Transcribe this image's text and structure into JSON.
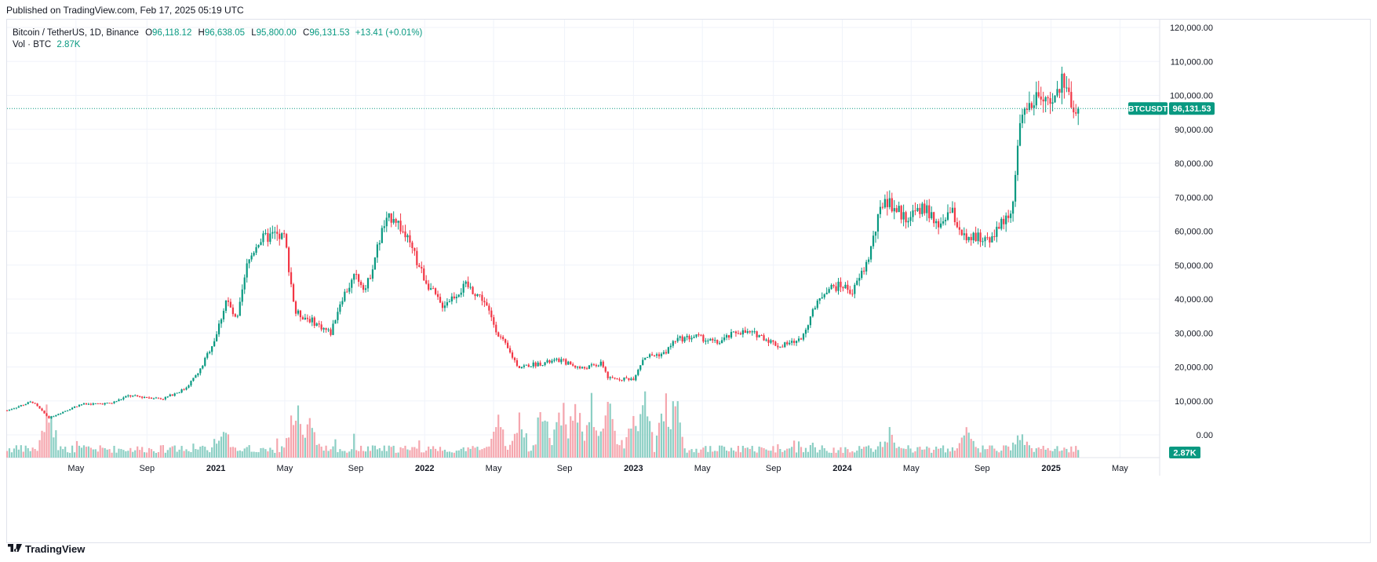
{
  "header": {
    "published": "Published on TradingView.com, Feb 17, 2025 05:19 UTC"
  },
  "legend": {
    "symbol": "Bitcoin / TetherUS, 1D, Binance",
    "open_label": "O",
    "open": "96,118.12",
    "high_label": "H",
    "high": "96,638.05",
    "low_label": "L",
    "low": "95,800.00",
    "close_label": "C",
    "close": "96,131.53",
    "change": "+13.41 (+0.01%)",
    "vol_label": "Vol · BTC",
    "vol_value": "2.87K"
  },
  "footer": {
    "brand": "TradingView",
    "logo_icon": "tradingview-logo-icon"
  },
  "colors": {
    "up": "#089981",
    "down": "#f23645",
    "up_vol": "#8ccfc4",
    "down_vol": "#f5a6ae",
    "grid": "#f0f3fa",
    "text": "#131722"
  },
  "chart_data": {
    "type": "candlestick",
    "title": "Bitcoin / TetherUS, 1D, Binance",
    "symbol_tag": "BTCUSDT",
    "last_price": 96131.53,
    "last_price_label": "96,131.53",
    "volume_label": "2.87K",
    "y_ticks": [
      {
        "v": 120000,
        "label": "120,000.00"
      },
      {
        "v": 110000,
        "label": "110,000.00"
      },
      {
        "v": 100000,
        "label": "100,000.00"
      },
      {
        "v": 90000,
        "label": "90,000.00"
      },
      {
        "v": 80000,
        "label": "80,000.00"
      },
      {
        "v": 70000,
        "label": "70,000.00"
      },
      {
        "v": 60000,
        "label": "60,000.00"
      },
      {
        "v": 50000,
        "label": "50,000.00"
      },
      {
        "v": 40000,
        "label": "40,000.00"
      },
      {
        "v": 30000,
        "label": "30,000.00"
      },
      {
        "v": 20000,
        "label": "20,000.00"
      },
      {
        "v": 10000,
        "label": "10,000.00"
      },
      {
        "v": 0,
        "label": "0.00"
      }
    ],
    "ylim": [
      0,
      120000
    ],
    "x_range": [
      2020.0,
      2025.52
    ],
    "x_ticks": [
      {
        "t": 2020.33,
        "label": "May",
        "bold": false
      },
      {
        "t": 2020.67,
        "label": "Sep",
        "bold": false
      },
      {
        "t": 2021.0,
        "label": "2021",
        "bold": true
      },
      {
        "t": 2021.33,
        "label": "May",
        "bold": false
      },
      {
        "t": 2021.67,
        "label": "Sep",
        "bold": false
      },
      {
        "t": 2022.0,
        "label": "2022",
        "bold": true
      },
      {
        "t": 2022.33,
        "label": "May",
        "bold": false
      },
      {
        "t": 2022.67,
        "label": "Sep",
        "bold": false
      },
      {
        "t": 2023.0,
        "label": "2023",
        "bold": true
      },
      {
        "t": 2023.33,
        "label": "May",
        "bold": false
      },
      {
        "t": 2023.67,
        "label": "Sep",
        "bold": false
      },
      {
        "t": 2024.0,
        "label": "2024",
        "bold": true
      },
      {
        "t": 2024.33,
        "label": "May",
        "bold": false
      },
      {
        "t": 2024.67,
        "label": "Sep",
        "bold": false
      },
      {
        "t": 2025.0,
        "label": "2025",
        "bold": true
      },
      {
        "t": 2025.33,
        "label": "May",
        "bold": false
      }
    ],
    "price_path": [
      [
        2020.0,
        7200
      ],
      [
        2020.12,
        9800
      ],
      [
        2020.2,
        5000
      ],
      [
        2020.35,
        9000
      ],
      [
        2020.5,
        9300
      ],
      [
        2020.58,
        11500
      ],
      [
        2020.75,
        10700
      ],
      [
        2020.85,
        13500
      ],
      [
        2020.92,
        18500
      ],
      [
        2021.0,
        29000
      ],
      [
        2021.05,
        40000
      ],
      [
        2021.1,
        33000
      ],
      [
        2021.15,
        50000
      ],
      [
        2021.2,
        57000
      ],
      [
        2021.28,
        59000
      ],
      [
        2021.33,
        58000
      ],
      [
        2021.38,
        36000
      ],
      [
        2021.45,
        34000
      ],
      [
        2021.55,
        30000
      ],
      [
        2021.6,
        40000
      ],
      [
        2021.67,
        47000
      ],
      [
        2021.72,
        43000
      ],
      [
        2021.8,
        61000
      ],
      [
        2021.85,
        65000
      ],
      [
        2021.92,
        57000
      ],
      [
        2022.0,
        46000
      ],
      [
        2022.08,
        38000
      ],
      [
        2022.2,
        44000
      ],
      [
        2022.28,
        40000
      ],
      [
        2022.35,
        30000
      ],
      [
        2022.45,
        20000
      ],
      [
        2022.55,
        21000
      ],
      [
        2022.65,
        22000
      ],
      [
        2022.75,
        19500
      ],
      [
        2022.85,
        21000
      ],
      [
        2022.88,
        16500
      ],
      [
        2023.0,
        16600
      ],
      [
        2023.05,
        23000
      ],
      [
        2023.15,
        24000
      ],
      [
        2023.2,
        28000
      ],
      [
        2023.3,
        29000
      ],
      [
        2023.4,
        27000
      ],
      [
        2023.5,
        30500
      ],
      [
        2023.6,
        29500
      ],
      [
        2023.7,
        26000
      ],
      [
        2023.8,
        28000
      ],
      [
        2023.85,
        35000
      ],
      [
        2023.92,
        43000
      ],
      [
        2024.0,
        44000
      ],
      [
        2024.05,
        42000
      ],
      [
        2024.12,
        51000
      ],
      [
        2024.2,
        70000
      ],
      [
        2024.3,
        64000
      ],
      [
        2024.4,
        67000
      ],
      [
        2024.45,
        61000
      ],
      [
        2024.52,
        66000
      ],
      [
        2024.6,
        56000
      ],
      [
        2024.62,
        58000
      ],
      [
        2024.7,
        58000
      ],
      [
        2024.78,
        63000
      ],
      [
        2024.82,
        69000
      ],
      [
        2024.85,
        90000
      ],
      [
        2024.9,
        97000
      ],
      [
        2024.95,
        99000
      ],
      [
        2025.0,
        96000
      ],
      [
        2025.05,
        104000
      ],
      [
        2025.1,
        98000
      ],
      [
        2025.13,
        96131
      ]
    ],
    "volume_spikes": [
      [
        2020.2,
        0.85
      ],
      [
        2021.03,
        0.6
      ],
      [
        2021.38,
        0.9
      ],
      [
        2021.45,
        0.5
      ],
      [
        2022.35,
        0.55
      ],
      [
        2022.45,
        0.7
      ],
      [
        2022.57,
        0.95
      ],
      [
        2022.65,
        1.0
      ],
      [
        2022.72,
        0.9
      ],
      [
        2022.8,
        0.85
      ],
      [
        2022.88,
        1.0
      ],
      [
        2023.0,
        0.6
      ],
      [
        2023.05,
        0.9
      ],
      [
        2023.15,
        1.0
      ],
      [
        2023.2,
        1.0
      ],
      [
        2024.22,
        0.35
      ],
      [
        2024.6,
        0.45
      ],
      [
        2024.85,
        0.3
      ]
    ]
  }
}
